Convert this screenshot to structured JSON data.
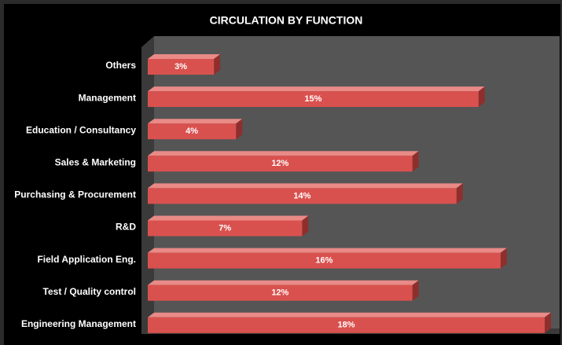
{
  "chart_data": {
    "type": "bar",
    "orientation": "horizontal",
    "title": "CIRCULATION BY FUNCTION",
    "categories": [
      "Others",
      "Management",
      "Education / Consultancy",
      "Sales & Marketing",
      "Purchasing & Procurement",
      "R&D",
      "Field Application Eng.",
      "Test / Quality control",
      "Engineering Management"
    ],
    "values": [
      3,
      15,
      4,
      12,
      14,
      7,
      16,
      12,
      18
    ],
    "value_labels": [
      "3%",
      "15%",
      "4%",
      "12%",
      "14%",
      "7%",
      "16%",
      "12%",
      "18%"
    ],
    "color": "#d9514e"
  }
}
